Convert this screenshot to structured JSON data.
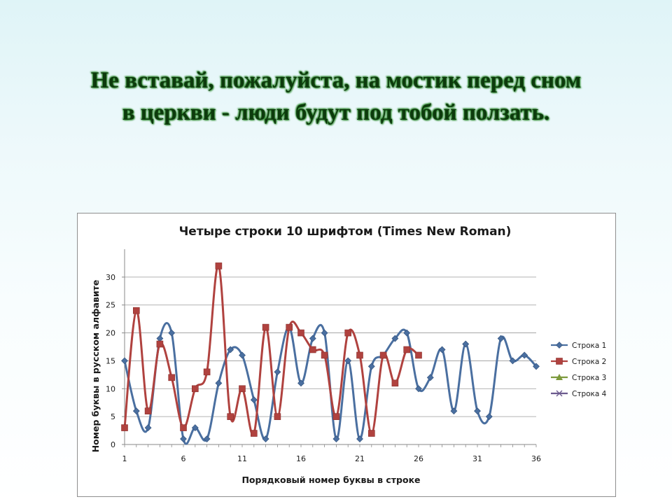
{
  "slide": {
    "title_line1": "Не вставай, пожалуйста, на мостик перед сном",
    "title_line2": "в церкви - люди будут под тобой ползать."
  },
  "chart_data": {
    "type": "line",
    "title": "Четыре строки 10 шрифтом (Times New Roman)",
    "xlabel": "Порядковый номер буквы в строке",
    "ylabel": "Номер буквы в русском алфавите",
    "x_ticks": [
      "1",
      "6",
      "11",
      "16",
      "21",
      "26",
      "31",
      "36"
    ],
    "y_ticks": [
      "0",
      "5",
      "10",
      "15",
      "20",
      "25",
      "30"
    ],
    "xlim": [
      1,
      36
    ],
    "ylim": [
      0,
      35
    ],
    "grid": "horizontal",
    "legend_position": "right",
    "smooth": true,
    "series": [
      {
        "name": "Строка 1",
        "color": "#4a6fa0",
        "marker": "diamond",
        "values": [
          15,
          6,
          3,
          19,
          20,
          1,
          3,
          1,
          11,
          17,
          16,
          8,
          1,
          13,
          21,
          11,
          19,
          20,
          1,
          15,
          1,
          14,
          16,
          19,
          20,
          10,
          12,
          17,
          6,
          18,
          6,
          5,
          19,
          15,
          16,
          14
        ]
      },
      {
        "name": "Строка 2",
        "color": "#b0423f",
        "marker": "square",
        "values": [
          3,
          24,
          6,
          18,
          12,
          3,
          10,
          13,
          32,
          5,
          10,
          2,
          21,
          5,
          21,
          20,
          17,
          16,
          5,
          20,
          16,
          2,
          16,
          11,
          17,
          16
        ]
      },
      {
        "name": "Строка 3",
        "color": "#7d9a3c",
        "marker": "triangle",
        "values": []
      },
      {
        "name": "Строка 4",
        "color": "#6b5a8e",
        "marker": "x",
        "values": []
      }
    ]
  }
}
